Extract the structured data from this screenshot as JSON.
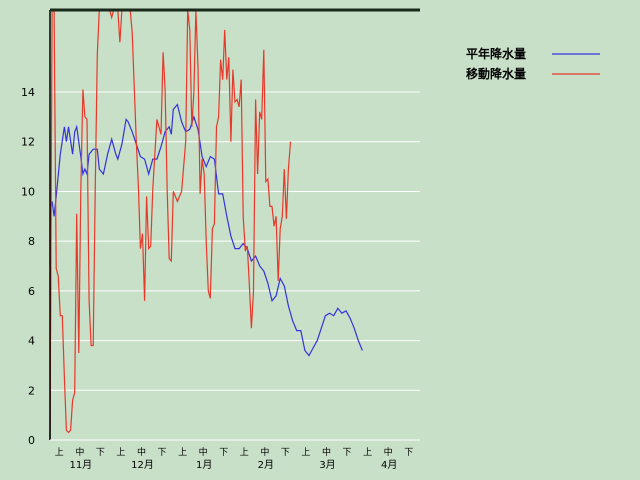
{
  "chart_data": {
    "type": "line",
    "y_ticks": [
      "0",
      "2",
      "4",
      "6",
      "8",
      "10",
      "12",
      "14"
    ],
    "ylim": [
      0,
      17.3
    ],
    "period_labels": [
      "上",
      "中",
      "下"
    ],
    "months": [
      "11月",
      "12月",
      "1月",
      "2月",
      "3月",
      "4月"
    ],
    "x_points": 180,
    "grid": true,
    "legend_position": "top-right",
    "series": [
      {
        "name": "平年降水量",
        "color": "#3333dd",
        "values": [
          [
            0,
            0
          ],
          [
            0.5,
            9.4
          ],
          [
            1,
            9.6
          ],
          [
            2,
            9.0
          ],
          [
            3,
            9.8
          ],
          [
            5,
            11.5
          ],
          [
            7,
            12.6
          ],
          [
            8,
            12.0
          ],
          [
            9,
            12.6
          ],
          [
            11,
            11.5
          ],
          [
            12,
            12.4
          ],
          [
            13,
            12.6
          ],
          [
            15,
            11.4
          ],
          [
            16,
            10.7
          ],
          [
            17,
            10.9
          ],
          [
            18,
            10.7
          ],
          [
            19,
            11.5
          ],
          [
            21,
            11.7
          ],
          [
            23,
            11.7
          ],
          [
            24,
            10.9
          ],
          [
            26,
            10.7
          ],
          [
            28,
            11.5
          ],
          [
            30,
            12.1
          ],
          [
            32,
            11.5
          ],
          [
            33,
            11.3
          ],
          [
            35,
            11.9
          ],
          [
            37,
            12.9
          ],
          [
            38,
            12.8
          ],
          [
            40,
            12.4
          ],
          [
            42,
            11.9
          ],
          [
            44,
            11.4
          ],
          [
            46,
            11.3
          ],
          [
            48,
            10.7
          ],
          [
            50,
            11.3
          ],
          [
            52,
            11.3
          ],
          [
            54,
            11.8
          ],
          [
            56,
            12.4
          ],
          [
            58,
            12.6
          ],
          [
            59,
            12.3
          ],
          [
            60,
            13.3
          ],
          [
            62,
            13.5
          ],
          [
            64,
            12.8
          ],
          [
            66,
            12.4
          ],
          [
            68,
            12.5
          ],
          [
            70,
            13.0
          ],
          [
            72,
            12.5
          ],
          [
            74,
            11.4
          ],
          [
            76,
            11.0
          ],
          [
            78,
            11.4
          ],
          [
            80,
            11.3
          ],
          [
            82,
            9.9
          ],
          [
            84,
            9.9
          ],
          [
            86,
            9.0
          ],
          [
            88,
            8.2
          ],
          [
            90,
            7.7
          ],
          [
            92,
            7.7
          ],
          [
            94,
            7.9
          ],
          [
            96,
            7.7
          ],
          [
            98,
            7.2
          ],
          [
            100,
            7.4
          ],
          [
            102,
            7.0
          ],
          [
            104,
            6.8
          ],
          [
            106,
            6.3
          ],
          [
            108,
            5.6
          ],
          [
            110,
            5.8
          ],
          [
            112,
            6.5
          ],
          [
            114,
            6.2
          ],
          [
            116,
            5.4
          ],
          [
            118,
            4.8
          ],
          [
            120,
            4.4
          ],
          [
            122,
            4.4
          ],
          [
            124,
            3.6
          ],
          [
            126,
            3.4
          ],
          [
            128,
            3.7
          ],
          [
            130,
            4.0
          ],
          [
            132,
            4.5
          ],
          [
            134,
            5.0
          ],
          [
            136,
            5.1
          ],
          [
            138,
            5.0
          ],
          [
            140,
            5.3
          ],
          [
            142,
            5.1
          ],
          [
            144,
            5.2
          ],
          [
            146,
            4.9
          ],
          [
            148,
            4.5
          ],
          [
            150,
            4.0
          ],
          [
            152,
            3.6
          ]
        ]
      },
      {
        "name": "移動降水量",
        "color": "#e8382a",
        "values": [
          [
            0,
            0
          ],
          [
            1,
            17.5
          ],
          [
            2,
            17.5
          ],
          [
            3,
            6.9
          ],
          [
            4,
            6.6
          ],
          [
            5,
            5.0
          ],
          [
            6,
            5.0
          ],
          [
            7,
            2.5
          ],
          [
            8,
            0.4
          ],
          [
            9,
            0.3
          ],
          [
            10,
            0.4
          ],
          [
            11,
            1.6
          ],
          [
            12,
            1.9
          ],
          [
            13,
            9.1
          ],
          [
            14,
            3.5
          ],
          [
            15,
            10.0
          ],
          [
            16,
            14.1
          ],
          [
            17,
            13.0
          ],
          [
            18,
            12.9
          ],
          [
            19,
            5.6
          ],
          [
            20,
            3.8
          ],
          [
            21,
            3.8
          ],
          [
            22,
            10.0
          ],
          [
            23,
            15.5
          ],
          [
            24,
            17.5
          ],
          [
            25,
            17.5
          ],
          [
            27,
            17.5
          ],
          [
            28,
            17.5
          ],
          [
            29,
            17.5
          ],
          [
            30,
            17.0
          ],
          [
            31,
            17.5
          ],
          [
            32,
            17.5
          ],
          [
            33,
            17.5
          ],
          [
            34,
            16.0
          ],
          [
            35,
            17.5
          ],
          [
            36,
            17.5
          ],
          [
            38,
            17.5
          ],
          [
            39,
            17.5
          ],
          [
            40,
            16.4
          ],
          [
            42,
            12.0
          ],
          [
            43,
            10.2
          ],
          [
            44,
            7.7
          ],
          [
            45,
            8.3
          ],
          [
            46,
            5.6
          ],
          [
            47,
            9.8
          ],
          [
            48,
            7.7
          ],
          [
            49,
            7.8
          ],
          [
            50,
            10.1
          ],
          [
            52,
            12.9
          ],
          [
            54,
            12.3
          ],
          [
            55,
            15.6
          ],
          [
            56,
            14.1
          ],
          [
            57,
            10.0
          ],
          [
            58,
            7.3
          ],
          [
            59,
            7.2
          ],
          [
            60,
            10.0
          ],
          [
            62,
            9.6
          ],
          [
            64,
            10.0
          ],
          [
            66,
            12.0
          ],
          [
            67,
            17.5
          ],
          [
            68,
            16.5
          ],
          [
            69,
            12.6
          ],
          [
            70,
            14.0
          ],
          [
            71,
            17.5
          ],
          [
            72,
            15.0
          ],
          [
            73,
            9.9
          ],
          [
            74,
            11.3
          ],
          [
            75,
            10.7
          ],
          [
            76,
            8.0
          ],
          [
            77,
            6.0
          ],
          [
            78,
            5.7
          ],
          [
            79,
            8.5
          ],
          [
            80,
            8.7
          ],
          [
            81,
            12.6
          ],
          [
            82,
            13.0
          ],
          [
            83,
            15.3
          ],
          [
            84,
            14.5
          ],
          [
            85,
            16.5
          ],
          [
            86,
            14.5
          ],
          [
            87,
            15.4
          ],
          [
            88,
            12.0
          ],
          [
            89,
            14.9
          ],
          [
            90,
            13.6
          ],
          [
            91,
            13.7
          ],
          [
            92,
            13.4
          ],
          [
            93,
            14.5
          ],
          [
            94,
            9.0
          ],
          [
            95,
            7.6
          ],
          [
            96,
            7.8
          ],
          [
            97,
            6.2
          ],
          [
            98,
            4.5
          ],
          [
            99,
            6.0
          ],
          [
            100,
            13.7
          ],
          [
            101,
            10.7
          ],
          [
            102,
            13.2
          ],
          [
            103,
            12.9
          ],
          [
            104,
            15.7
          ],
          [
            105,
            10.4
          ],
          [
            106,
            10.5
          ],
          [
            107,
            9.4
          ],
          [
            108,
            9.4
          ],
          [
            109,
            8.6
          ],
          [
            110,
            9.0
          ],
          [
            111,
            6.4
          ],
          [
            112,
            8.5
          ],
          [
            113,
            9.0
          ],
          [
            114,
            10.9
          ],
          [
            115,
            8.9
          ],
          [
            116,
            10.9
          ],
          [
            117,
            12.0
          ]
        ]
      }
    ]
  }
}
